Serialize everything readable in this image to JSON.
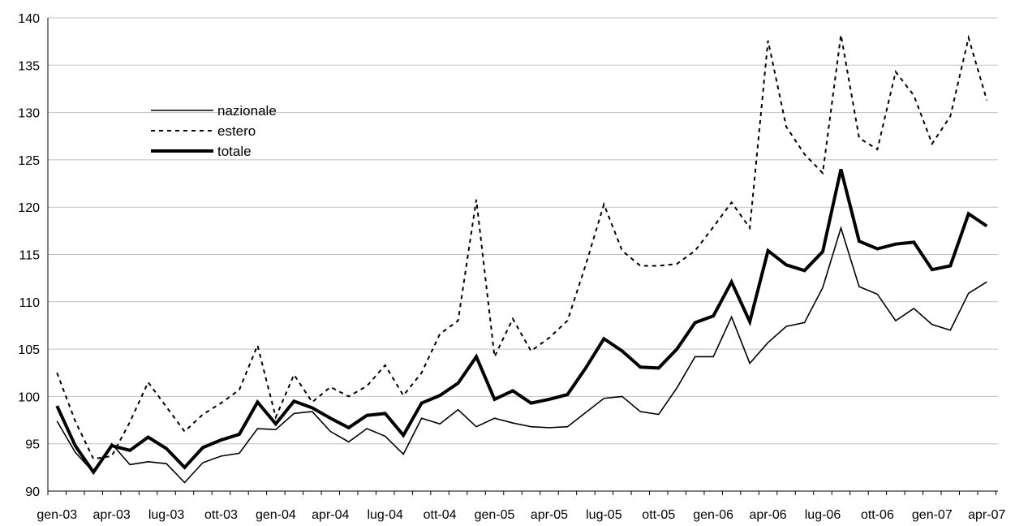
{
  "chart_data": {
    "type": "line",
    "title": "",
    "xlabel": "",
    "ylabel": "",
    "ylim": [
      90,
      140
    ],
    "yticks": [
      90,
      95,
      100,
      105,
      110,
      115,
      120,
      125,
      130,
      135,
      140
    ],
    "grid": "horizontal",
    "legend_position": "upper-left",
    "x": [
      "gen-03",
      "feb-03",
      "mar-03",
      "apr-03",
      "mag-03",
      "giu-03",
      "lug-03",
      "ago-03",
      "set-03",
      "ott-03",
      "nov-03",
      "dic-03",
      "gen-04",
      "feb-04",
      "mar-04",
      "apr-04",
      "mag-04",
      "giu-04",
      "lug-04",
      "ago-04",
      "set-04",
      "ott-04",
      "nov-04",
      "dic-04",
      "gen-05",
      "feb-05",
      "mar-05",
      "apr-05",
      "mag-05",
      "giu-05",
      "lug-05",
      "ago-05",
      "set-05",
      "ott-05",
      "nov-05",
      "dic-05",
      "gen-06",
      "feb-06",
      "mar-06",
      "apr-06",
      "mag-06",
      "giu-06",
      "lug-06",
      "ago-06",
      "set-06",
      "ott-06",
      "nov-06",
      "dic-06",
      "gen-07",
      "feb-07",
      "mar-07",
      "apr-07"
    ],
    "tick_labels": [
      "gen-03",
      "apr-03",
      "lug-03",
      "ott-03",
      "gen-04",
      "apr-04",
      "lug-04",
      "ott-04",
      "gen-05",
      "apr-05",
      "lug-05",
      "ott-05",
      "gen-06",
      "apr-06",
      "lug-06",
      "ott-06",
      "gen-07",
      "apr-07"
    ],
    "series": [
      {
        "name": "nazionale",
        "style": "thin-solid",
        "color": "#000000",
        "values": [
          97.4,
          94.1,
          92.0,
          95.0,
          92.8,
          93.1,
          92.9,
          90.9,
          93.0,
          93.7,
          94.0,
          96.6,
          96.5,
          98.2,
          98.4,
          96.3,
          95.2,
          96.6,
          95.8,
          93.9,
          97.7,
          97.1,
          98.6,
          96.8,
          97.7,
          97.2,
          96.8,
          96.7,
          96.8,
          98.3,
          99.8,
          100.0,
          98.4,
          98.1,
          100.9,
          104.2,
          104.2,
          108.4,
          103.5,
          105.7,
          107.4,
          107.8,
          111.5,
          117.8,
          111.6,
          110.8,
          108.0,
          109.3,
          107.6,
          107.0,
          110.9,
          112.1
        ]
      },
      {
        "name": "estero",
        "style": "dotted",
        "color": "#000000",
        "values": [
          102.5,
          97.4,
          93.4,
          93.7,
          97.3,
          101.5,
          98.9,
          96.3,
          98.1,
          99.3,
          100.7,
          105.4,
          97.8,
          102.3,
          99.4,
          101.0,
          100.0,
          101.1,
          103.3,
          100.1,
          102.5,
          106.6,
          108.0,
          120.8,
          104.2,
          108.2,
          104.8,
          106.2,
          108.0,
          113.9,
          120.3,
          115.4,
          113.8,
          113.8,
          114.0,
          115.4,
          117.9,
          120.5,
          117.8,
          137.6,
          128.5,
          125.6,
          123.6,
          138.2,
          127.3,
          126.1,
          134.3,
          131.8,
          126.7,
          129.6,
          137.9,
          131.3
        ]
      },
      {
        "name": "totale",
        "style": "thick-solid",
        "color": "#000000",
        "values": [
          99.0,
          94.8,
          92.0,
          94.8,
          94.3,
          95.7,
          94.5,
          92.5,
          94.6,
          95.4,
          96.0,
          99.4,
          97.1,
          99.5,
          98.8,
          97.7,
          96.7,
          98.0,
          98.2,
          95.9,
          99.3,
          100.1,
          101.4,
          104.2,
          99.7,
          100.6,
          99.3,
          99.7,
          100.2,
          103.0,
          106.1,
          104.8,
          103.1,
          103.0,
          105.0,
          107.8,
          108.5,
          112.1,
          107.9,
          115.4,
          113.9,
          113.3,
          115.3,
          124.0,
          116.4,
          115.6,
          116.1,
          116.3,
          113.4,
          113.8,
          119.3,
          118.0
        ]
      }
    ]
  }
}
